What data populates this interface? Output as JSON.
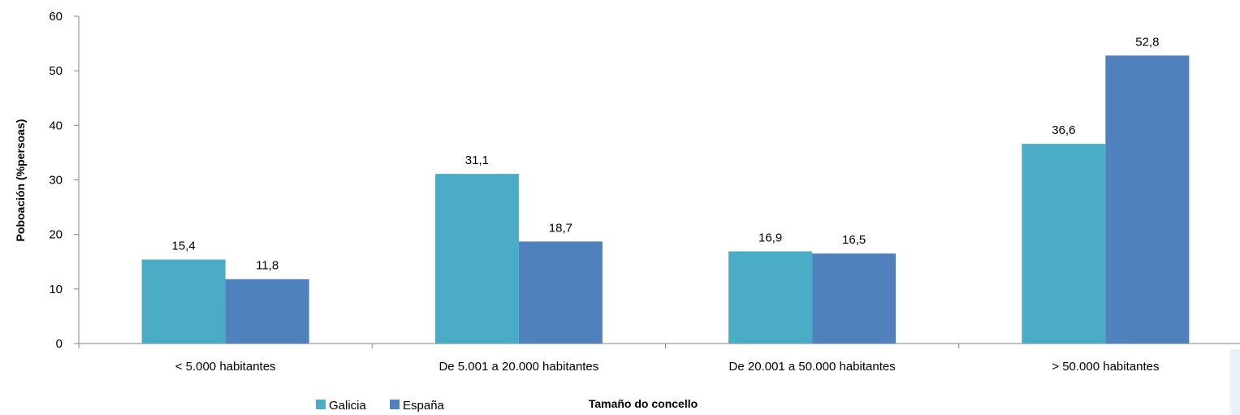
{
  "chart_data": {
    "type": "bar",
    "categories": [
      "< 5.000 habitantes",
      "De 5.001 a 20.000 habitantes",
      "De 20.001 a 50.000 habitantes",
      "> 50.000 habitantes"
    ],
    "series": [
      {
        "name": "Galicia",
        "values": [
          15.4,
          31.1,
          16.9,
          36.6
        ],
        "labels": [
          "15,4",
          "31,1",
          "16,9",
          "36,6"
        ],
        "color": "#4BACC6"
      },
      {
        "name": "España",
        "values": [
          11.8,
          18.7,
          16.5,
          52.8
        ],
        "labels": [
          "11,8",
          "18,7",
          "16,5",
          "52,8"
        ],
        "color": "#4F81BD"
      }
    ],
    "title": "",
    "xlabel": "Tamaño do concello",
    "ylabel": "Poboación (%persoas)",
    "ylim": [
      0,
      60
    ],
    "yticks": [
      0,
      10,
      20,
      30,
      40,
      50,
      60
    ],
    "grid": false,
    "legend": "bottom-left"
  }
}
